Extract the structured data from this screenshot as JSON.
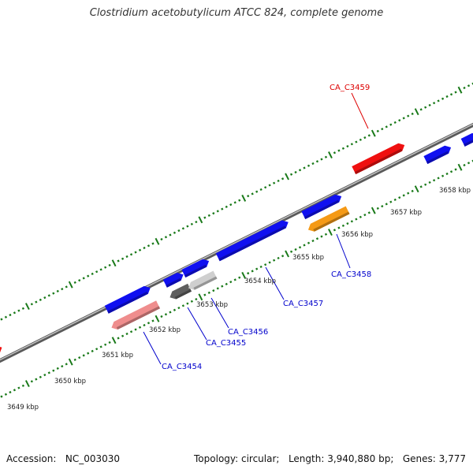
{
  "title": "Clostridium acetobutylicum ATCC 824, complete genome",
  "accession": {
    "label": "Accession:",
    "value": "NC_003030"
  },
  "stats": {
    "topology": "Topology: circular;",
    "length": "Length: 3,940,880 bp;",
    "genes": "Genes: 3,777"
  },
  "scale": {
    "unit": "kbp",
    "labels": [
      "3649 kbp",
      "3650 kbp",
      "3651 kbp",
      "3652 kbp",
      "3653 kbp",
      "3654 kbp",
      "3655 kbp",
      "3656 kbp",
      "3657 kbp",
      "3658 kbp"
    ]
  },
  "genes": [
    {
      "id": "CA_C3454",
      "label": "CA_C3454",
      "color": "#ef8d8d",
      "strand": "reverse"
    },
    {
      "id": "CA_C3455",
      "label": "CA_C3455",
      "color": "#5f5f5f",
      "strand": "reverse"
    },
    {
      "id": "CA_C3456",
      "label": "CA_C3456",
      "color": "#cfcfcf",
      "strand": "reverse"
    },
    {
      "id": "CA_C3457",
      "label": "CA_C3457",
      "color": "#1010f0",
      "strand": "forward"
    },
    {
      "id": "CA_C3458",
      "label": "CA_C3458",
      "color": "#f59a16",
      "strand": "reverse"
    },
    {
      "id": "CA_C3459",
      "label": "CA_C3459",
      "color": "#ef1010",
      "strand": "forward"
    }
  ],
  "colors": {
    "forward_gene": "#1010f0",
    "track_tick": "#1a7a1a",
    "backbone": "#8a8a8a",
    "label_blue": "#0000cc",
    "label_red": "#dd0000"
  }
}
